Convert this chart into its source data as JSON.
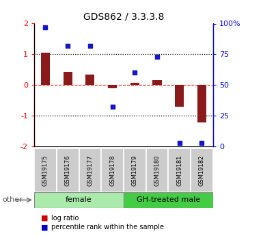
{
  "title": "GDS862 / 3.3.3.8",
  "samples": [
    "GSM19175",
    "GSM19176",
    "GSM19177",
    "GSM19178",
    "GSM19179",
    "GSM19180",
    "GSM19181",
    "GSM19182"
  ],
  "log_ratio": [
    1.05,
    0.42,
    0.35,
    -0.1,
    0.07,
    0.17,
    -0.72,
    -1.22
  ],
  "percentile_rank": [
    97,
    82,
    82,
    32,
    60,
    73,
    3,
    3
  ],
  "bar_color": "#8B1A1A",
  "square_color": "#1515CC",
  "groups": [
    {
      "label": "female",
      "start": 0,
      "end": 3,
      "color": "#AAEAAA"
    },
    {
      "label": "GH-treated male",
      "start": 4,
      "end": 7,
      "color": "#44CC44"
    }
  ],
  "ylim_left": [
    -2,
    2
  ],
  "ylim_right": [
    0,
    100
  ],
  "left_ticks": [
    -2,
    -1,
    0,
    1,
    2
  ],
  "right_ticks": [
    0,
    25,
    50,
    75,
    100
  ],
  "right_tick_labels": [
    "0",
    "25",
    "50",
    "75",
    "100%"
  ],
  "hlines_dotted": [
    1.0,
    -1.0
  ],
  "hline_dashed_red": 0.0,
  "other_label": "other",
  "legend_items": [
    {
      "label": "log ratio",
      "color": "#CC0000"
    },
    {
      "label": "percentile rank within the sample",
      "color": "#0000CC"
    }
  ],
  "bar_width": 0.4,
  "square_size": 22
}
